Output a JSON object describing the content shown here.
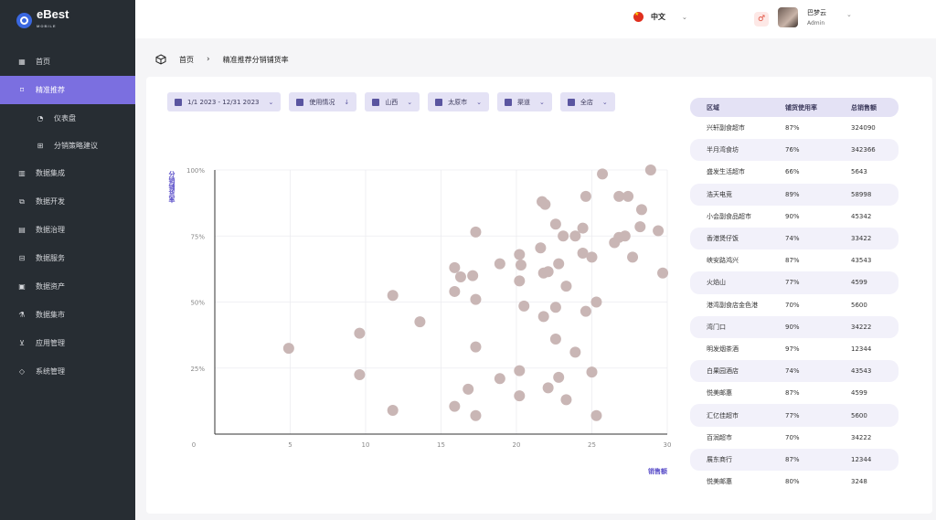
{
  "brand": {
    "name": "eBest",
    "sub": "MOBILE"
  },
  "sidebar": {
    "items": [
      {
        "label": "首页",
        "icon": "grid-icon"
      },
      {
        "label": "精准推荐",
        "icon": "brush-icon",
        "active": true
      },
      {
        "label": "仪表盘",
        "icon": "gauge-icon",
        "sub": true
      },
      {
        "label": "分销策略建议",
        "icon": "blocks-icon",
        "sub": true
      },
      {
        "label": "数据集成",
        "icon": "bar-chart-icon"
      },
      {
        "label": "数据开发",
        "icon": "layers-icon"
      },
      {
        "label": "数据治理",
        "icon": "database-icon"
      },
      {
        "label": "数据服务",
        "icon": "service-icon"
      },
      {
        "label": "数据资产",
        "icon": "asset-icon"
      },
      {
        "label": "数据集市",
        "icon": "flask-icon"
      },
      {
        "label": "应用管理",
        "icon": "cart-icon"
      },
      {
        "label": "系统管理",
        "icon": "tag-icon"
      }
    ]
  },
  "header": {
    "language": "中文",
    "user_name": "巴梦云",
    "user_role": "Admin"
  },
  "breadcrumb": {
    "home": "首页",
    "current": "精准推荐分销铺货率"
  },
  "filters": [
    {
      "label": "1/1 2023 - 12/31 2023",
      "icon": "calendar-icon",
      "caret": "⌄"
    },
    {
      "label": "使用情况",
      "icon": "list-icon",
      "caret": "↓"
    },
    {
      "label": "山西",
      "icon": "grid-icon",
      "caret": "⌄"
    },
    {
      "label": "太原市",
      "icon": "map-icon",
      "caret": "⌄"
    },
    {
      "label": "渠道",
      "icon": "channel-icon",
      "caret": "⌄"
    },
    {
      "label": "全店",
      "icon": "store-icon",
      "caret": "⌄"
    }
  ],
  "chart_data": {
    "type": "scatter",
    "xlabel": "销售额",
    "ylabel": "分销铺货率",
    "xlim": [
      0,
      30
    ],
    "ylim": [
      0,
      100
    ],
    "x_ticks": [
      "0",
      "5",
      "10",
      "15",
      "20",
      "25",
      "30"
    ],
    "y_ticks": [
      "25%",
      "50%",
      "75%",
      "100%"
    ],
    "y_tick_values": [
      25,
      50,
      75,
      100
    ],
    "x_tick_values": [
      0,
      5,
      10,
      15,
      20,
      25,
      30
    ],
    "color": "#c9b6b5",
    "grid": true,
    "points": [
      [
        4.9,
        32.5
      ],
      [
        9.6,
        38.2
      ],
      [
        9.6,
        22.5
      ],
      [
        11.8,
        52.5
      ],
      [
        11.8,
        9.0
      ],
      [
        13.6,
        42.5
      ],
      [
        15.9,
        63.0
      ],
      [
        15.9,
        54.0
      ],
      [
        15.9,
        10.5
      ],
      [
        16.3,
        59.5
      ],
      [
        16.8,
        17.0
      ],
      [
        17.1,
        60.0
      ],
      [
        17.3,
        76.5
      ],
      [
        17.3,
        51.0
      ],
      [
        17.3,
        33.0
      ],
      [
        17.3,
        7.0
      ],
      [
        18.9,
        64.5
      ],
      [
        18.9,
        21.0
      ],
      [
        20.2,
        68.0
      ],
      [
        20.2,
        58.0
      ],
      [
        20.3,
        64.0
      ],
      [
        20.2,
        24.0
      ],
      [
        20.2,
        14.5
      ],
      [
        20.5,
        48.5
      ],
      [
        21.6,
        70.5
      ],
      [
        21.7,
        88.0
      ],
      [
        21.9,
        87.0
      ],
      [
        21.8,
        61.0
      ],
      [
        21.8,
        44.5
      ],
      [
        22.1,
        61.5
      ],
      [
        22.1,
        17.5
      ],
      [
        22.6,
        79.5
      ],
      [
        22.6,
        48.0
      ],
      [
        22.6,
        36.0
      ],
      [
        22.8,
        64.5
      ],
      [
        22.8,
        21.5
      ],
      [
        23.1,
        75.0
      ],
      [
        23.3,
        56.0
      ],
      [
        23.3,
        13.0
      ],
      [
        23.9,
        75.0
      ],
      [
        23.9,
        31.0
      ],
      [
        24.4,
        78.0
      ],
      [
        24.4,
        68.5
      ],
      [
        24.6,
        90.0
      ],
      [
        24.6,
        46.5
      ],
      [
        25.0,
        67.0
      ],
      [
        25.0,
        23.5
      ],
      [
        25.3,
        50.0
      ],
      [
        25.3,
        7.0
      ],
      [
        25.7,
        98.5
      ],
      [
        26.5,
        72.5
      ],
      [
        26.8,
        74.5
      ],
      [
        26.8,
        90.0
      ],
      [
        27.2,
        75.0
      ],
      [
        27.4,
        90.0
      ],
      [
        27.7,
        67.0
      ],
      [
        28.2,
        78.5
      ],
      [
        28.3,
        85.0
      ],
      [
        28.9,
        100.0
      ],
      [
        29.4,
        77.0
      ],
      [
        29.7,
        61.0
      ]
    ]
  },
  "table": {
    "headers": [
      "区域",
      "铺货使用率",
      "总销售额"
    ],
    "rows": [
      [
        "兴轩副食超市",
        "87%",
        "324090"
      ],
      [
        "半月湾食坊",
        "76%",
        "342366"
      ],
      [
        "盛发生活超市",
        "66%",
        "5643"
      ],
      [
        "浩天电竞",
        "89%",
        "58998"
      ],
      [
        "小会副食品超市",
        "90%",
        "45342"
      ],
      [
        "香港煲仔饭",
        "74%",
        "33422"
      ],
      [
        "峡安路鸿兴",
        "87%",
        "43543"
      ],
      [
        "火焰山",
        "77%",
        "4599"
      ],
      [
        "港湾副食店金色港",
        "70%",
        "5600"
      ],
      [
        "湾门口",
        "90%",
        "34222"
      ],
      [
        "明发烟茶酒",
        "97%",
        "12344"
      ],
      [
        "白果园酒店",
        "74%",
        "43543"
      ],
      [
        "悦美邮惠",
        "87%",
        "4599"
      ],
      [
        "汇亿佳超市",
        "77%",
        "5600"
      ],
      [
        "百润超市",
        "70%",
        "34222"
      ],
      [
        "展东商行",
        "87%",
        "12344"
      ],
      [
        "悦美邮惠",
        "80%",
        "3248"
      ]
    ]
  }
}
